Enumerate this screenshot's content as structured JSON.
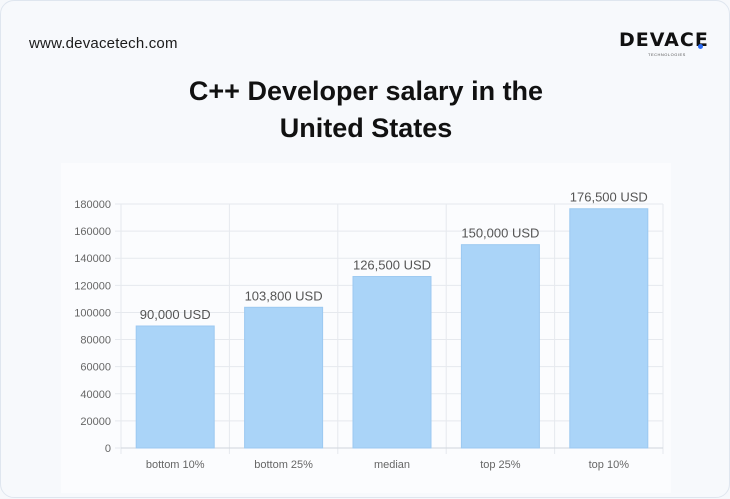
{
  "header": {
    "site_url": "www.devacetech.com",
    "logo_text": "DEVACE",
    "logo_subtext": "TECHNOLOGIES"
  },
  "chart_data": {
    "type": "bar",
    "title_line1": "C++ Developer salary in the",
    "title_line2": "United States",
    "categories": [
      "bottom 10%",
      "bottom 25%",
      "median",
      "top 25%",
      "top 10%"
    ],
    "values": [
      90000,
      103800,
      126500,
      150000,
      176500
    ],
    "data_labels": [
      "90,000 USD",
      "103,800 USD",
      "126,500 USD",
      "150,000 USD",
      "176,500 USD"
    ],
    "y_ticks": [
      "0",
      "20000",
      "40000",
      "60000",
      "80000",
      "100000",
      "120000",
      "140000",
      "160000",
      "180000"
    ],
    "ylim": [
      0,
      180000
    ],
    "grid": true,
    "bar_color": "#aad4f8",
    "bar_edge_color": "#9cc9f1"
  }
}
